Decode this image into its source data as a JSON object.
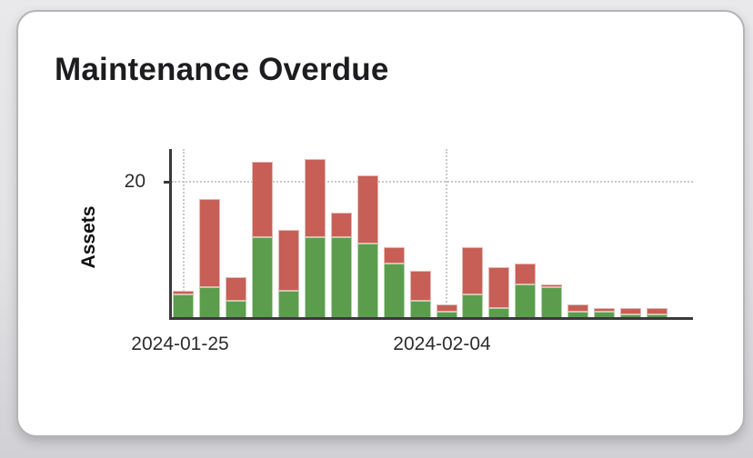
{
  "chart_data": {
    "type": "bar",
    "stacked": true,
    "title": "Maintenance Overdue",
    "xlabel": "",
    "ylabel": "Assets",
    "ylim": [
      0,
      25
    ],
    "grid": "dotted",
    "legend": "none",
    "x": [
      "2024-01-25",
      "2024-01-26",
      "2024-01-27",
      "2024-01-28",
      "2024-01-29",
      "2024-01-30",
      "2024-01-31",
      "2024-02-01",
      "2024-02-02",
      "2024-02-03",
      "2024-02-04",
      "2024-02-05",
      "2024-02-06",
      "2024-02-07",
      "2024-02-08",
      "2024-02-09",
      "2024-02-10",
      "2024-02-11",
      "2024-02-12"
    ],
    "series": [
      {
        "name": "green",
        "color": "#5b9d4d",
        "values": [
          3.5,
          4.5,
          2.5,
          12,
          4,
          12,
          12,
          11,
          8,
          2.5,
          1,
          3.5,
          1.5,
          5,
          4.5,
          1,
          1,
          0.5,
          0.5
        ]
      },
      {
        "name": "red",
        "color": "#c75f57",
        "values": [
          0.5,
          13,
          3.5,
          11,
          9,
          11.5,
          3.5,
          10,
          2.5,
          4.5,
          1,
          7,
          6,
          3,
          0.5,
          1,
          0.5,
          1,
          1
        ]
      }
    ],
    "totals": [
      4,
      17.5,
      6,
      23,
      13,
      23.5,
      15.5,
      21,
      10.5,
      7,
      2,
      10.5,
      7.5,
      8,
      5,
      2,
      1.5,
      1.5,
      1.5
    ],
    "yticks": [
      {
        "value": 20,
        "label": "20"
      }
    ],
    "xticks": [
      {
        "value": "2024-01-25",
        "label": "2024-01-25"
      },
      {
        "value": "2024-02-04",
        "label": "2024-02-04"
      }
    ]
  },
  "colors": {
    "page_bg": "#e2e2e5",
    "card_bg": "#ffffff",
    "card_border": "#b4b4b7",
    "axis": "#3a3a3a",
    "grid": "#c9c9c9",
    "title_text": "#1d1d1f",
    "tick_text": "#2d2d2d",
    "bar_green": "#5b9d4d",
    "bar_red": "#c75f57"
  }
}
